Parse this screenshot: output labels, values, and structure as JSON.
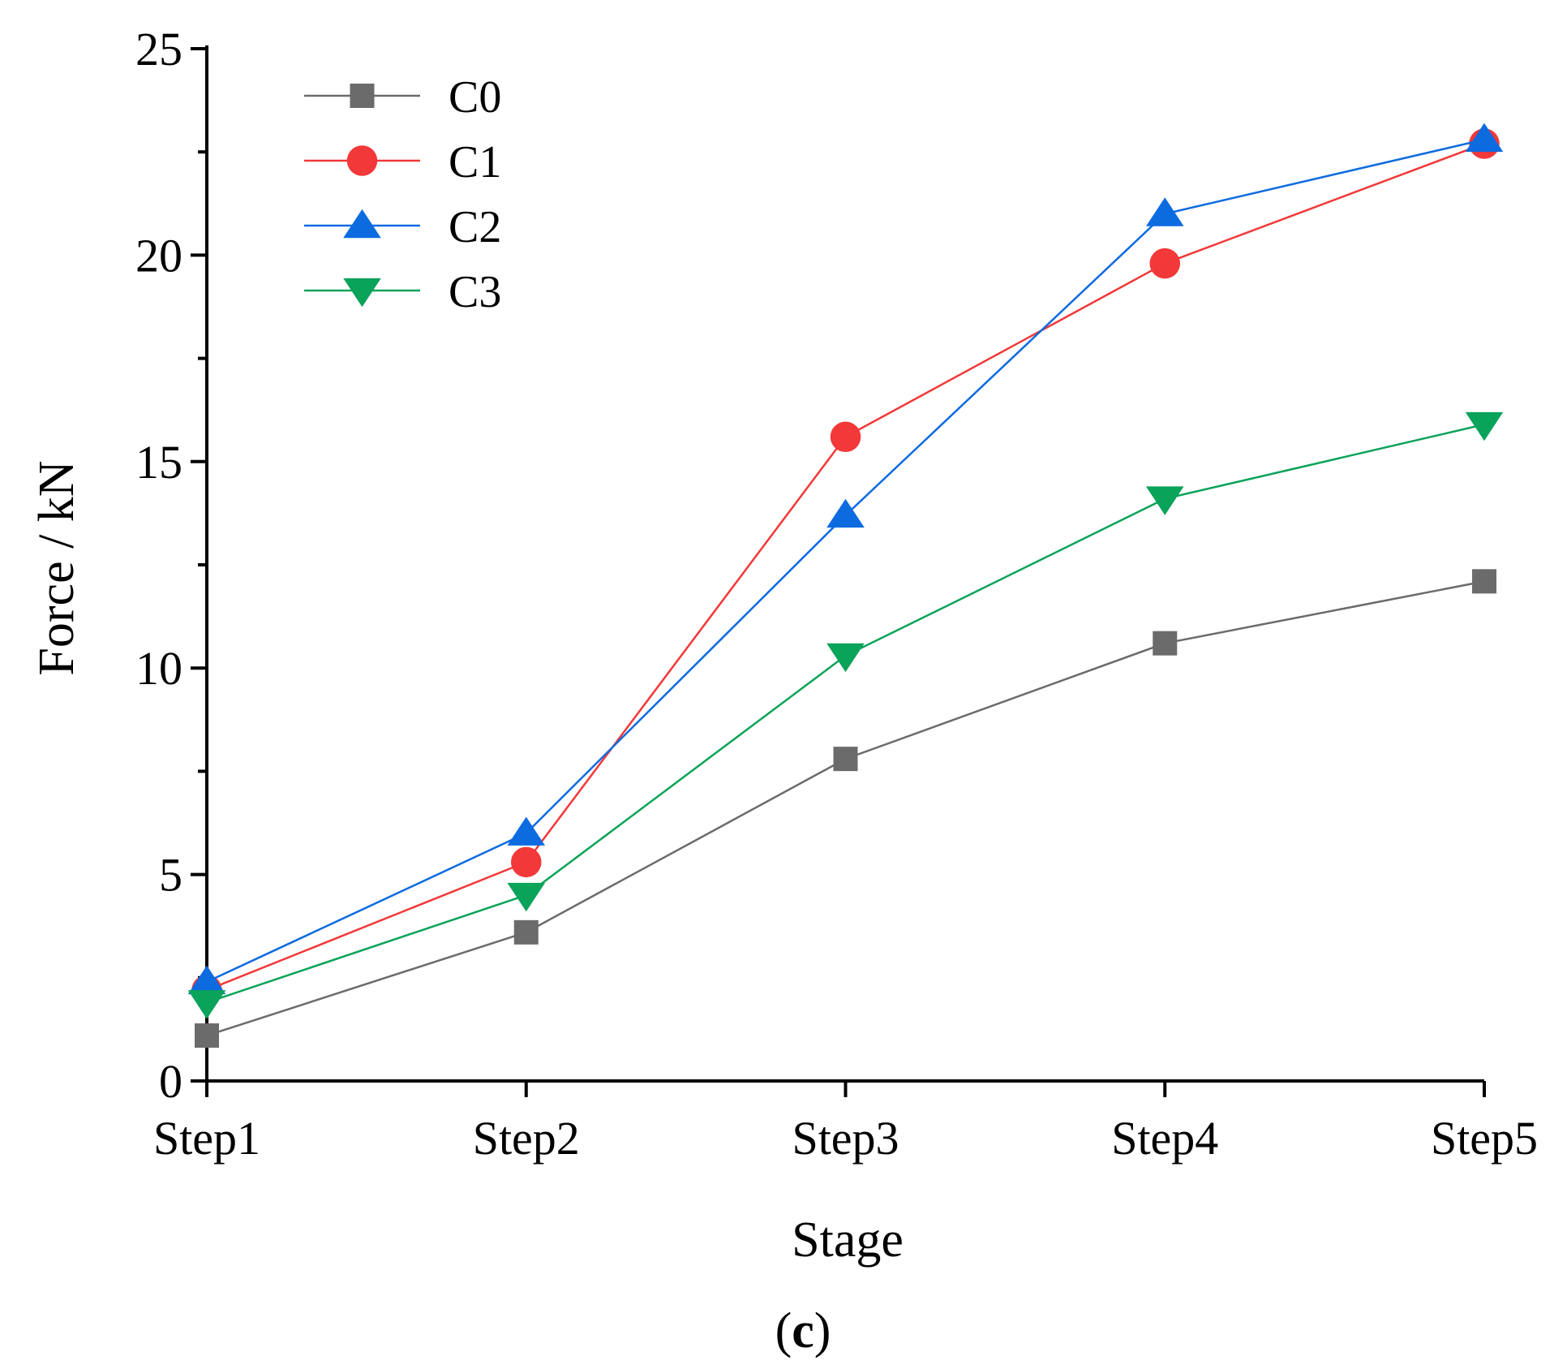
{
  "chart_data": {
    "type": "line",
    "categories": [
      "Step1",
      "Step2",
      "Step3",
      "Step4",
      "Step5"
    ],
    "xlabel": "Stage",
    "ylabel": "Force / kN",
    "ylim": [
      0,
      25
    ],
    "yticks": [
      0,
      5,
      10,
      15,
      20,
      25
    ],
    "grid": false,
    "legend": "top-left",
    "series": [
      {
        "name": "C0",
        "color": "#6b6b6b",
        "marker": "square",
        "values": [
          1.1,
          3.6,
          7.8,
          10.6,
          12.1
        ]
      },
      {
        "name": "C1",
        "color": "#f23838",
        "marker": "circle",
        "values": [
          2.2,
          5.3,
          15.6,
          19.8,
          22.7
        ]
      },
      {
        "name": "C2",
        "color": "#0d6be0",
        "marker": "triangle-up",
        "values": [
          2.4,
          6.0,
          13.7,
          21.0,
          22.8
        ]
      },
      {
        "name": "C3",
        "color": "#0aa35a",
        "marker": "triangle-down",
        "values": [
          1.9,
          4.5,
          10.3,
          14.1,
          15.9
        ]
      }
    ]
  },
  "panel_label": {
    "open": "(",
    "letter": "c",
    "close": ")"
  }
}
